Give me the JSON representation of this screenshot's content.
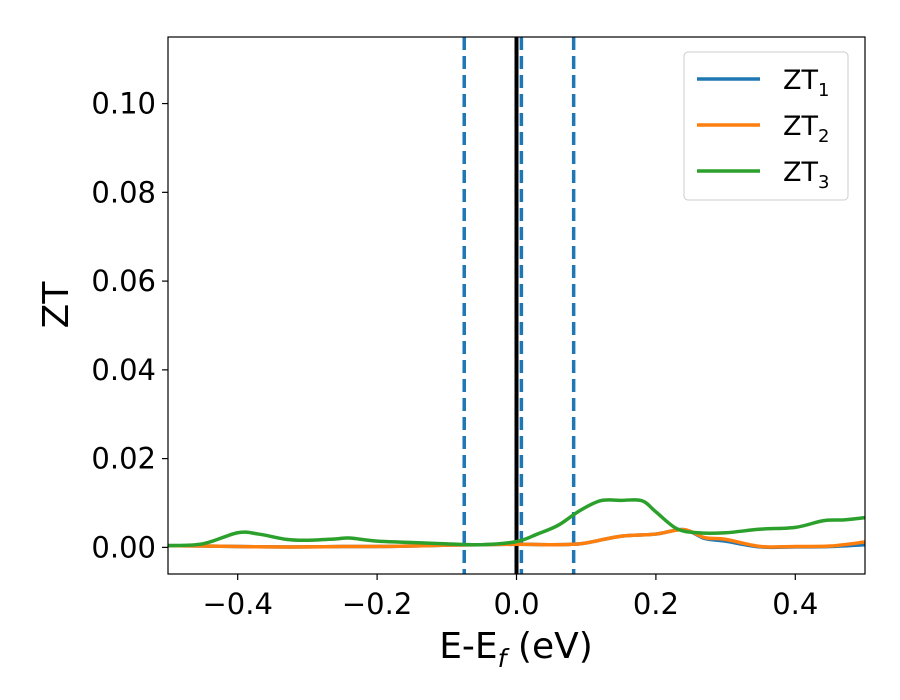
{
  "chart_data": {
    "type": "line",
    "xlabel": {
      "main": "E-E",
      "sub": "f",
      "suffix": " (eV)"
    },
    "ylabel": "ZT",
    "xlim": [
      -0.5,
      0.5
    ],
    "ylim": [
      -0.006,
      0.115
    ],
    "xticks": [
      -0.4,
      -0.2,
      0.0,
      0.2,
      0.4
    ],
    "xtick_labels": [
      "−0.4",
      "−0.2",
      "0.0",
      "0.2",
      "0.4"
    ],
    "yticks": [
      0.0,
      0.02,
      0.04,
      0.06,
      0.08,
      0.1
    ],
    "ytick_labels": [
      "0.00",
      "0.02",
      "0.04",
      "0.06",
      "0.08",
      "0.10"
    ],
    "grid": false,
    "legend_position": "top-right",
    "series": [
      {
        "name": "ZT1",
        "label_main": "ZT",
        "label_sub": "1",
        "color": "#1f77b4",
        "x": [
          -0.5,
          -0.45,
          -0.4,
          -0.35,
          -0.3,
          -0.25,
          -0.2,
          -0.15,
          -0.1,
          -0.05,
          0.0,
          0.05,
          0.08,
          0.1,
          0.15,
          0.2,
          0.24,
          0.27,
          0.3,
          0.35,
          0.4,
          0.45,
          0.5
        ],
        "y": [
          0.0004,
          0.0003,
          0.0002,
          0.0001,
          0.0001,
          0.0002,
          0.0002,
          0.0003,
          0.0005,
          0.0006,
          0.0007,
          0.0006,
          0.0007,
          0.001,
          0.0025,
          0.003,
          0.004,
          0.002,
          0.0014,
          0.0001,
          0.0001,
          0.0002,
          0.0006
        ]
      },
      {
        "name": "ZT2",
        "label_main": "ZT",
        "label_sub": "2",
        "color": "#ff7f0e",
        "x": [
          -0.5,
          -0.45,
          -0.4,
          -0.35,
          -0.3,
          -0.25,
          -0.2,
          -0.15,
          -0.1,
          -0.05,
          0.0,
          0.05,
          0.08,
          0.1,
          0.15,
          0.2,
          0.24,
          0.27,
          0.3,
          0.35,
          0.4,
          0.45,
          0.5
        ],
        "y": [
          0.0004,
          0.0003,
          0.0002,
          0.0001,
          0.0001,
          0.0002,
          0.0002,
          0.0003,
          0.0005,
          0.0006,
          0.0007,
          0.0006,
          0.0007,
          0.001,
          0.0025,
          0.003,
          0.004,
          0.0022,
          0.0018,
          0.0002,
          0.0002,
          0.0003,
          0.0012
        ]
      },
      {
        "name": "ZT3",
        "label_main": "ZT",
        "label_sub": "3",
        "color": "#2ca02c",
        "x": [
          -0.5,
          -0.45,
          -0.4,
          -0.37,
          -0.33,
          -0.3,
          -0.26,
          -0.24,
          -0.2,
          -0.15,
          -0.1,
          -0.05,
          0.0,
          0.03,
          0.06,
          0.09,
          0.12,
          0.15,
          0.18,
          0.2,
          0.23,
          0.26,
          0.3,
          0.35,
          0.4,
          0.44,
          0.47,
          0.5
        ],
        "y": [
          0.0004,
          0.0008,
          0.0033,
          0.003,
          0.0018,
          0.0016,
          0.0019,
          0.0021,
          0.0014,
          0.0011,
          0.0008,
          0.0006,
          0.0013,
          0.003,
          0.005,
          0.0082,
          0.0105,
          0.0106,
          0.0105,
          0.008,
          0.0042,
          0.0033,
          0.0033,
          0.0041,
          0.0045,
          0.006,
          0.0062,
          0.0067
        ]
      }
    ],
    "vlines": [
      {
        "x": 0.0,
        "style": "solid",
        "color": "#000000"
      },
      {
        "x": -0.075,
        "style": "dashed",
        "color": "#1f77b4"
      },
      {
        "x": 0.007,
        "style": "dashed",
        "color": "#1f77b4"
      },
      {
        "x": 0.082,
        "style": "dashed",
        "color": "#1f77b4"
      }
    ]
  }
}
